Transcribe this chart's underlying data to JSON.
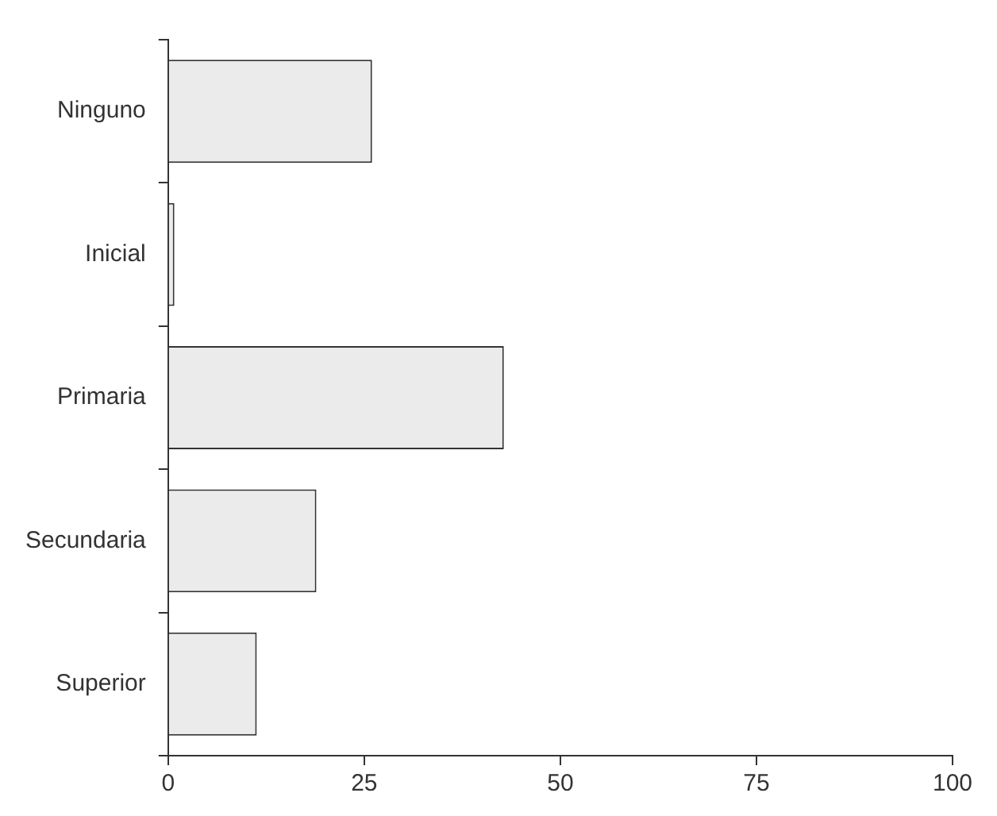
{
  "chart_data": {
    "type": "bar",
    "orientation": "horizontal",
    "categories": [
      "Ninguno",
      "Inicial",
      "Primaria",
      "Secundaria",
      "Superior"
    ],
    "values": [
      26,
      0.8,
      42.8,
      18.9,
      11.3
    ],
    "color": "#ebebeb",
    "xlim": [
      0,
      100
    ],
    "xticks": [
      0,
      25,
      50,
      75,
      100
    ],
    "grid": false,
    "legend": false
  }
}
